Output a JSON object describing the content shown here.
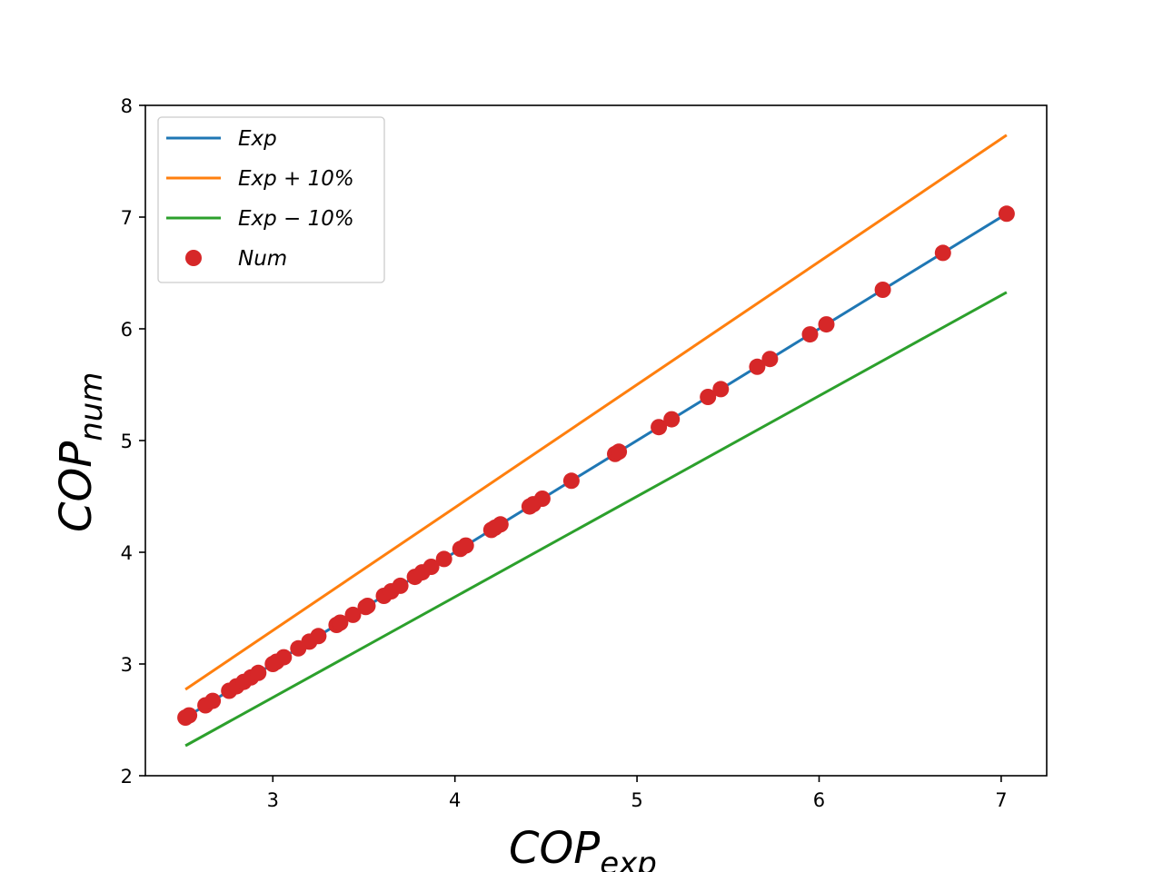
{
  "chart_data": {
    "type": "scatter",
    "xlabel": "COP",
    "xlabel_sub": "exp",
    "ylabel": "COP",
    "ylabel_sub": "num",
    "xlim": [
      2.3,
      7.25
    ],
    "ylim": [
      2,
      8
    ],
    "xticks": [
      3,
      4,
      5,
      6,
      7
    ],
    "yticks": [
      2,
      3,
      4,
      5,
      6,
      7,
      8
    ],
    "grid": false,
    "legend_position": "top-left",
    "legend": [
      {
        "label": "Exp",
        "series": "exp"
      },
      {
        "label": "Exp + 10%",
        "series": "exp_plus"
      },
      {
        "label": "Exp − 10%",
        "series": "exp_minus"
      },
      {
        "label": "Num",
        "series": "num"
      }
    ],
    "series": [
      {
        "key": "exp",
        "name": "Exp",
        "kind": "line",
        "color": "#1f77b4",
        "x": [
          2.52,
          7.03
        ],
        "y": [
          2.52,
          7.03
        ]
      },
      {
        "key": "exp_plus",
        "name": "Exp + 10%",
        "kind": "line",
        "color": "#ff7f0e",
        "x": [
          2.52,
          7.03
        ],
        "y": [
          2.772,
          7.733
        ]
      },
      {
        "key": "exp_minus",
        "name": "Exp − 10%",
        "kind": "line",
        "color": "#2ca02c",
        "x": [
          2.52,
          7.03
        ],
        "y": [
          2.268,
          6.327
        ]
      },
      {
        "key": "num",
        "name": "Num",
        "kind": "scatter",
        "color": "#d62728",
        "x": [
          2.52,
          2.54,
          2.63,
          2.67,
          2.76,
          2.8,
          2.84,
          2.88,
          2.92,
          3.0,
          3.02,
          3.06,
          3.14,
          3.2,
          3.25,
          3.35,
          3.37,
          3.44,
          3.51,
          3.52,
          3.61,
          3.65,
          3.7,
          3.78,
          3.82,
          3.87,
          3.94,
          4.03,
          4.06,
          4.2,
          4.22,
          4.25,
          4.41,
          4.43,
          4.48,
          4.64,
          4.88,
          4.9,
          5.12,
          5.19,
          5.39,
          5.46,
          5.66,
          5.73,
          5.95,
          6.04,
          6.35,
          6.68,
          7.03
        ],
        "y": [
          2.52,
          2.54,
          2.63,
          2.67,
          2.76,
          2.8,
          2.84,
          2.88,
          2.92,
          3.0,
          3.02,
          3.06,
          3.14,
          3.2,
          3.25,
          3.35,
          3.37,
          3.44,
          3.51,
          3.52,
          3.61,
          3.65,
          3.7,
          3.78,
          3.82,
          3.87,
          3.94,
          4.03,
          4.06,
          4.2,
          4.22,
          4.25,
          4.41,
          4.43,
          4.48,
          4.64,
          4.88,
          4.9,
          5.12,
          5.19,
          5.39,
          5.46,
          5.66,
          5.73,
          5.95,
          6.04,
          6.35,
          6.68,
          7.03
        ]
      }
    ]
  }
}
